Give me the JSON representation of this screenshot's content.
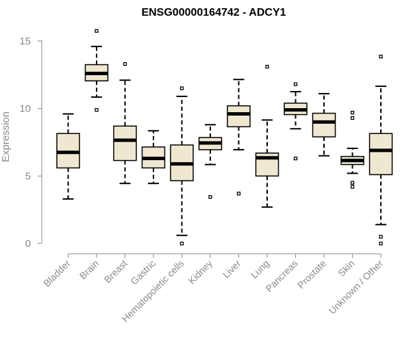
{
  "chart_data": {
    "type": "boxplot",
    "title": "ENSG00000164742 - ADCY1",
    "xlabel": "",
    "ylabel": "Expression",
    "ylim": [
      0,
      15.5
    ],
    "yticks": [
      0,
      5,
      10,
      15
    ],
    "box_fill": "#efe7cf",
    "categories": [
      "Bladder",
      "Brain",
      "Breast",
      "Gastric",
      "Hematopoietic cells",
      "Kidney",
      "Liver",
      "Lung",
      "Pancreas",
      "Prostate",
      "Skin",
      "Unknown / Other"
    ],
    "boxes": [
      {
        "q1": 5.6,
        "median": 6.75,
        "q3": 8.15,
        "whisker_low": 3.3,
        "whisker_high": 9.6,
        "outliers": []
      },
      {
        "q1": 12.05,
        "median": 12.6,
        "q3": 13.25,
        "whisker_low": 10.85,
        "whisker_high": 14.6,
        "outliers": [
          15.75,
          9.9
        ]
      },
      {
        "q1": 6.15,
        "median": 7.65,
        "q3": 8.7,
        "whisker_low": 4.45,
        "whisker_high": 12.1,
        "outliers": [
          13.3
        ]
      },
      {
        "q1": 5.6,
        "median": 6.3,
        "q3": 7.15,
        "whisker_low": 4.45,
        "whisker_high": 8.35,
        "outliers": []
      },
      {
        "q1": 4.65,
        "median": 5.9,
        "q3": 7.3,
        "whisker_low": 0.6,
        "whisker_high": 10.9,
        "outliers": [
          11.5,
          0.0
        ]
      },
      {
        "q1": 6.95,
        "median": 7.45,
        "q3": 7.85,
        "whisker_low": 5.85,
        "whisker_high": 8.8,
        "outliers": [
          3.45
        ]
      },
      {
        "q1": 8.65,
        "median": 9.6,
        "q3": 10.2,
        "whisker_low": 6.95,
        "whisker_high": 12.15,
        "outliers": [
          3.7
        ]
      },
      {
        "q1": 5.0,
        "median": 6.35,
        "q3": 6.7,
        "whisker_low": 2.7,
        "whisker_high": 9.15,
        "outliers": [
          13.1
        ]
      },
      {
        "q1": 9.55,
        "median": 9.9,
        "q3": 10.4,
        "whisker_low": 8.5,
        "whisker_high": 11.25,
        "outliers": [
          11.8,
          6.3
        ]
      },
      {
        "q1": 7.9,
        "median": 9.0,
        "q3": 9.65,
        "whisker_low": 6.5,
        "whisker_high": 11.1,
        "outliers": []
      },
      {
        "q1": 5.85,
        "median": 6.15,
        "q3": 6.45,
        "whisker_low": 5.2,
        "whisker_high": 7.05,
        "outliers": [
          9.7,
          9.3,
          4.5,
          4.2
        ]
      },
      {
        "q1": 5.1,
        "median": 6.9,
        "q3": 8.15,
        "whisker_low": 1.4,
        "whisker_high": 11.65,
        "outliers": [
          13.85,
          0.5,
          0.0
        ]
      }
    ]
  }
}
